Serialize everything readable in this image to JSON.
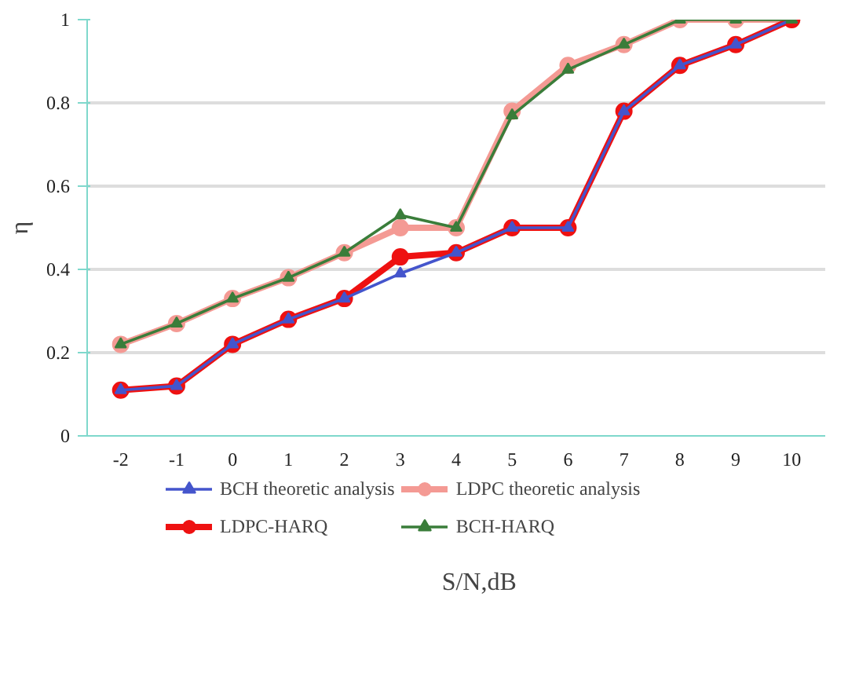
{
  "chart_data": {
    "type": "line",
    "xlabel": "S/N,dB",
    "ylabel": "η",
    "categories": [
      "-2",
      "-1",
      "0",
      "1",
      "2",
      "3",
      "4",
      "5",
      "6",
      "7",
      "8",
      "9",
      "10"
    ],
    "ylim": [
      0,
      1
    ],
    "yticks": [
      0,
      0.2,
      0.4,
      0.6,
      0.8,
      1
    ],
    "grid": "y",
    "legend": "bottom",
    "line_style": "solid",
    "series": [
      {
        "name": "BCH theoretic analysis",
        "color": "#4455cc",
        "marker": "triangle",
        "values": [
          0.11,
          0.12,
          0.22,
          0.28,
          0.33,
          0.39,
          0.44,
          0.5,
          0.5,
          0.78,
          0.89,
          0.94,
          1.0
        ]
      },
      {
        "name": "LDPC theoretic analysis",
        "color": "#f49a94",
        "marker": "circle",
        "values": [
          0.22,
          0.27,
          0.33,
          0.38,
          0.44,
          0.5,
          0.5,
          0.78,
          0.89,
          0.94,
          1.0,
          1.0,
          1.0
        ]
      },
      {
        "name": "LDPC-HARQ",
        "color": "#ee1111",
        "marker": "circle",
        "values": [
          0.11,
          0.12,
          0.22,
          0.28,
          0.33,
          0.43,
          0.44,
          0.5,
          0.5,
          0.78,
          0.89,
          0.94,
          1.0
        ]
      },
      {
        "name": "BCH-HARQ",
        "color": "#3a7d3a",
        "marker": "triangle",
        "values": [
          0.22,
          0.27,
          0.33,
          0.38,
          0.44,
          0.53,
          0.5,
          0.77,
          0.88,
          0.94,
          1.0,
          1.0,
          1.0
        ]
      }
    ]
  }
}
